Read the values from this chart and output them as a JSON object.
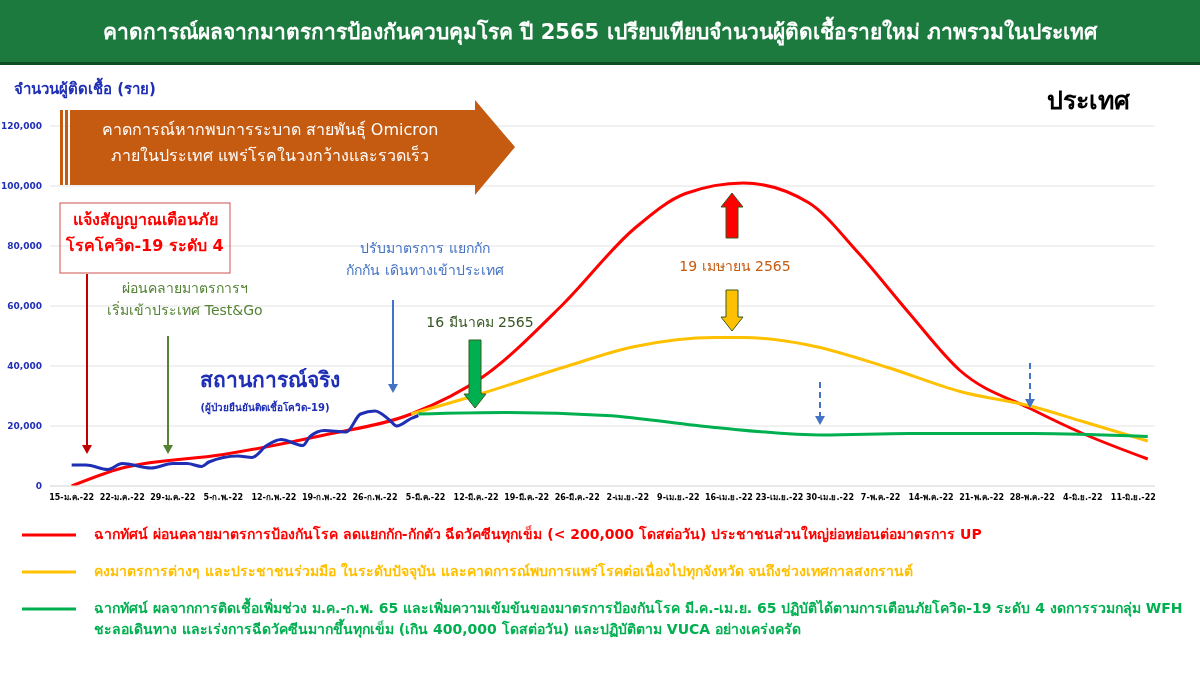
{
  "chart_data": {
    "type": "line",
    "title": "คาดการณ์ผลจากมาตรการป้องกันควบคุมโรค ปี 2565 เปรียบเทียบจำนวนผู้ติดเชื้อรายใหม่ ภาพรวมในประเทศ",
    "subtitle": "ประเทศ",
    "ylabel": "จำนวนผู้ติดเชื้อ (ราย)",
    "annotations": [
      "คาดการณ์หากพบการระบาด สายพันธุ์ Omicron\nภายในประเทศ แพร่โรคในวงกว้างและรวดเร็ว",
      "แจ้งสัญญาณเตือนภัย\nโรคโควิด-19 ระดับ 4",
      "ผ่อนคลายมาตรการฯ\nเริ่มเข้าประเทศ Test&Go",
      "ปรับมาตรการ แยกกัก\nกักกัน เดินทางเข้าประเทศ",
      "สถานการณ์จริง",
      "(ผู้ป่วยยืนยันติดเชื้อโควิด-19)",
      "16 มีนาคม 2565",
      "19 เมษายน 2565"
    ],
    "series": [
      {
        "name": "ฉากทัศน์ ผ่อนคลายมาตรการป้องกันโรค ลดแยกกัก-กักตัว ฉีดวัคซีนทุกเข็ม (< 200,000 โดสต่อวัน) ประชาชนส่วนใหญ่ย่อหย่อนต่อมาตรการ UP",
        "color": "#ff0000",
        "x": [
          "--01-15",
          "--01-22",
          "--02-05",
          "--02-19",
          "--03-03",
          "--03-13",
          "--03-24",
          "--04-03",
          "--04-10",
          "--04-18",
          "--04-27",
          "--05-04",
          "--05-11",
          "--05-18",
          "--05-28",
          "--06-04",
          "--06-13"
        ],
        "values": [
          0,
          6000,
          10500,
          17000,
          24000,
          36500,
          60500,
          86000,
          97500,
          101000,
          94500,
          77500,
          57500,
          38500,
          25500,
          17500,
          9000
        ]
      },
      {
        "name": "คงมาตรการต่างๆ และประชาชนร่วมมือ ในระดับปัจจุบัน และคาดการณ์พบการแพร่โรคต่อเนื่องไปทุกจังหวัด จนถึงช่วงเทศกาลสงกรานต์",
        "color": "#ffc000",
        "x": [
          "--03-03",
          "--03-13",
          "--03-24",
          "--04-03",
          "--04-14",
          "--04-18",
          "--04-27",
          "--05-08",
          "--05-18",
          "--05-28",
          "--06-04",
          "--06-13"
        ],
        "values": [
          24000,
          31000,
          39500,
          46500,
          49500,
          49500,
          47000,
          39500,
          31500,
          26500,
          21500,
          15000
        ]
      },
      {
        "name": "ฉากทัศน์ ผลจากการติดเชื้อเพิ่มช่วง ม.ค.-ก.พ. 65 และเพิ่มความเข้มข้นของมาตรการป้องกันโรค มี.ค.-เม.ย. 65 ปฏิบัติได้ตามการเตือนภัยโควิด-19 ระดับ 4 งดการรวมกลุ่ม WFH ชะลอเดินทาง และเร่งการฉีดวัคซีนมากขึ้นทุกเข็ม (เกิน 400,000 โดสต่อวัน) และปฏิบัติตาม VUCA อย่างเคร่งครัด",
        "color": "#00b050",
        "x": [
          "--03-04",
          "--03-16",
          "--03-30",
          "--04-14",
          "--04-29",
          "--05-11",
          "--05-28",
          "--06-13"
        ],
        "values": [
          24000,
          24500,
          23500,
          19500,
          17000,
          17500,
          17500,
          16500
        ]
      },
      {
        "color": "#1f2fb5",
        "x": [
          "--01-15",
          "--01-17",
          "--01-20",
          "--01-22",
          "--01-26",
          "--01-29",
          "--01-31",
          "--02-02",
          "--02-03",
          "--02-07",
          "--02-09",
          "--02-11",
          "--02-13",
          "--02-16",
          "--02-17",
          "--02-19",
          "--02-22",
          "--02-24",
          "--02-26",
          "--02-28",
          "--03-01",
          "--03-03",
          "--03-04"
        ],
        "values": [
          7000,
          7000,
          5500,
          7500,
          6000,
          7500,
          7500,
          6500,
          8000,
          10000,
          9500,
          13500,
          15500,
          13500,
          16500,
          18500,
          18000,
          24000,
          25000,
          22000,
          20000,
          22500,
          23500
        ]
      }
    ],
    "xlim": [
      "--01-12",
      "--06-14"
    ],
    "xticks": [
      {
        "value": "--01-15",
        "label": "15-ม.ค.-22"
      },
      {
        "value": "--01-22",
        "label": "22-ม.ค.-22"
      },
      {
        "value": "--01-29",
        "label": "29-ม.ค.-22"
      },
      {
        "value": "--02-05",
        "label": "5-ก.พ.-22"
      },
      {
        "value": "--02-12",
        "label": "12-ก.พ.-22"
      },
      {
        "value": "--02-19",
        "label": "19-ก.พ.-22"
      },
      {
        "value": "--02-26",
        "label": "26-ก.พ.-22"
      },
      {
        "value": "--03-05",
        "label": "5-มี.ค.-22"
      },
      {
        "value": "--03-12",
        "label": "12-มี.ค.-22"
      },
      {
        "value": "--03-19",
        "label": "19-มี.ค.-22"
      },
      {
        "value": "--03-26",
        "label": "26-มี.ค.-22"
      },
      {
        "value": "--04-02",
        "label": "2-เม.ย.-22"
      },
      {
        "value": "--04-09",
        "label": "9-เม.ย.-22"
      },
      {
        "value": "--04-16",
        "label": "16-เม.ย.-22"
      },
      {
        "value": "--04-23",
        "label": "23-เม.ย.-22"
      },
      {
        "value": "--04-30",
        "label": "30-เม.ย.-22"
      },
      {
        "value": "--05-07",
        "label": "7-พ.ค.-22"
      },
      {
        "value": "--05-14",
        "label": "14-พ.ค.-22"
      },
      {
        "value": "--05-21",
        "label": "21-พ.ค.-22"
      },
      {
        "value": "--05-28",
        "label": "28-พ.ค.-22"
      },
      {
        "value": "--06-04",
        "label": "4-มิ.ย.-22"
      },
      {
        "value": "--06-11",
        "label": "11-มิ.ย.-22"
      }
    ],
    "ylim": [
      0,
      120000
    ],
    "yticks": [
      0,
      {
        "value": 20000,
        "label": "20,000"
      },
      {
        "value": 40000,
        "label": "40,000"
      },
      {
        "value": 60000,
        "label": "60,000"
      },
      {
        "value": 80000,
        "label": "80,000"
      },
      {
        "value": 100000,
        "label": "100,000"
      },
      {
        "value": 120000,
        "label": "120,000"
      }
    ],
    "grid": "y",
    "legend": "bottom",
    "marker": "none",
    "line_style": "solid"
  }
}
